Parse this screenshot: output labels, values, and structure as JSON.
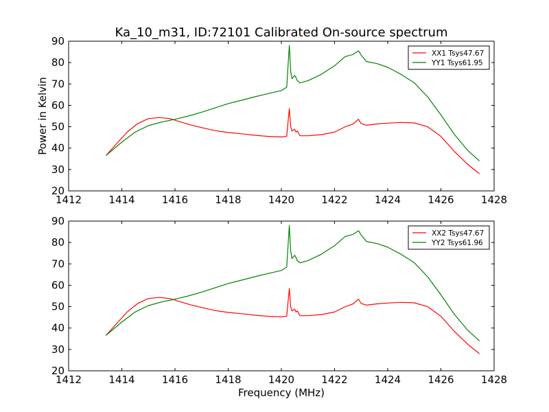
{
  "chart_data": [
    {
      "type": "line",
      "title": "Ka_10_m31, ID:72101 Calibrated On-source spectrum",
      "xlabel": "",
      "ylabel": "Power in Kelvin",
      "xlim": [
        1412,
        1428
      ],
      "ylim": [
        20,
        90
      ],
      "xticks": [
        "1412",
        "1414",
        "1416",
        "1418",
        "1420",
        "1422",
        "1424",
        "1426",
        "1428"
      ],
      "yticks": [
        "20",
        "30",
        "40",
        "50",
        "60",
        "70",
        "80",
        "90"
      ],
      "legend_position": "top-right",
      "grid": false,
      "series": [
        {
          "name": "XX1 Tsys47.67",
          "color": "#ff0000",
          "x": [
            1413.4,
            1413.8,
            1414.2,
            1414.6,
            1415.0,
            1415.4,
            1415.8,
            1416.2,
            1416.6,
            1417.0,
            1417.5,
            1418.0,
            1418.5,
            1419.0,
            1419.5,
            1420.0,
            1420.2,
            1420.3,
            1420.35,
            1420.4,
            1420.5,
            1420.55,
            1420.6,
            1420.7,
            1421.0,
            1421.5,
            1422.0,
            1422.4,
            1422.7,
            1422.9,
            1423.0,
            1423.2,
            1423.6,
            1424.0,
            1424.5,
            1425.0,
            1425.5,
            1426.0,
            1426.5,
            1427.0,
            1427.45
          ],
          "y": [
            36.5,
            42.0,
            47.5,
            51.5,
            53.8,
            54.3,
            53.8,
            52.3,
            50.8,
            49.6,
            48.2,
            47.3,
            46.7,
            46.0,
            45.5,
            45.2,
            45.6,
            58.5,
            50.0,
            48.0,
            48.8,
            47.5,
            48.0,
            45.8,
            45.8,
            46.3,
            47.5,
            50.0,
            51.3,
            53.5,
            51.5,
            50.7,
            51.3,
            51.7,
            52.0,
            51.8,
            50.0,
            45.5,
            38.5,
            32.5,
            28.0
          ]
        },
        {
          "name": "YY1 Tsys61.95",
          "color": "#008000",
          "x": [
            1413.4,
            1414.0,
            1414.5,
            1415.0,
            1415.5,
            1416.0,
            1416.5,
            1417.0,
            1417.5,
            1418.0,
            1418.5,
            1419.0,
            1419.5,
            1420.0,
            1420.2,
            1420.3,
            1420.35,
            1420.4,
            1420.5,
            1420.55,
            1420.6,
            1420.7,
            1421.0,
            1421.5,
            1422.0,
            1422.4,
            1422.7,
            1422.9,
            1423.0,
            1423.2,
            1423.6,
            1424.0,
            1424.5,
            1425.0,
            1425.5,
            1426.0,
            1426.5,
            1427.0,
            1427.45
          ],
          "y": [
            36.5,
            42.8,
            47.5,
            50.5,
            52.2,
            53.5,
            55.0,
            56.8,
            58.8,
            60.8,
            62.4,
            64.0,
            65.5,
            66.9,
            68.5,
            88.0,
            76.0,
            72.5,
            74.0,
            73.0,
            71.5,
            70.5,
            71.5,
            74.5,
            78.5,
            82.8,
            83.8,
            85.5,
            83.5,
            80.5,
            79.5,
            77.8,
            74.5,
            70.5,
            64.0,
            55.5,
            46.5,
            39.0,
            34.0
          ]
        }
      ]
    },
    {
      "type": "line",
      "title": "",
      "xlabel": "Frequency (MHz)",
      "ylabel": "",
      "xlim": [
        1412,
        1428
      ],
      "ylim": [
        20,
        90
      ],
      "xticks": [
        "1412",
        "1414",
        "1416",
        "1418",
        "1420",
        "1422",
        "1424",
        "1426",
        "1428"
      ],
      "yticks": [
        "20",
        "30",
        "40",
        "50",
        "60",
        "70",
        "80",
        "90"
      ],
      "legend_position": "top-right",
      "grid": false,
      "series": [
        {
          "name": "XX2 Tsys47.67",
          "color": "#ff0000",
          "x": [
            1413.4,
            1413.8,
            1414.2,
            1414.6,
            1415.0,
            1415.4,
            1415.8,
            1416.2,
            1416.6,
            1417.0,
            1417.5,
            1418.0,
            1418.5,
            1419.0,
            1419.5,
            1420.0,
            1420.2,
            1420.3,
            1420.35,
            1420.4,
            1420.5,
            1420.55,
            1420.6,
            1420.7,
            1421.0,
            1421.5,
            1422.0,
            1422.4,
            1422.7,
            1422.9,
            1423.0,
            1423.2,
            1423.6,
            1424.0,
            1424.5,
            1425.0,
            1425.5,
            1426.0,
            1426.5,
            1427.0,
            1427.45
          ],
          "y": [
            36.5,
            42.0,
            47.5,
            51.5,
            53.8,
            54.3,
            53.8,
            52.3,
            50.8,
            49.6,
            48.2,
            47.3,
            46.7,
            46.0,
            45.5,
            45.2,
            45.6,
            58.5,
            50.0,
            48.0,
            48.8,
            47.5,
            48.0,
            45.8,
            45.8,
            46.3,
            47.5,
            50.0,
            51.3,
            53.5,
            51.5,
            50.7,
            51.3,
            51.7,
            52.0,
            51.8,
            50.0,
            45.5,
            38.5,
            32.5,
            28.0
          ]
        },
        {
          "name": "YY2 Tsys61.96",
          "color": "#008000",
          "x": [
            1413.4,
            1414.0,
            1414.5,
            1415.0,
            1415.5,
            1416.0,
            1416.5,
            1417.0,
            1417.5,
            1418.0,
            1418.5,
            1419.0,
            1419.5,
            1420.0,
            1420.2,
            1420.3,
            1420.35,
            1420.4,
            1420.5,
            1420.55,
            1420.6,
            1420.7,
            1421.0,
            1421.5,
            1422.0,
            1422.4,
            1422.7,
            1422.9,
            1423.0,
            1423.2,
            1423.6,
            1424.0,
            1424.5,
            1425.0,
            1425.5,
            1426.0,
            1426.5,
            1427.0,
            1427.45
          ],
          "y": [
            36.5,
            42.8,
            47.5,
            50.5,
            52.2,
            53.5,
            55.0,
            56.8,
            58.8,
            60.8,
            62.4,
            64.0,
            65.5,
            66.9,
            68.5,
            88.0,
            76.0,
            72.5,
            74.0,
            73.0,
            71.5,
            70.5,
            71.5,
            74.5,
            78.5,
            82.8,
            83.8,
            85.5,
            83.5,
            80.5,
            79.5,
            77.8,
            74.5,
            70.5,
            64.0,
            55.5,
            46.5,
            39.0,
            34.0
          ]
        }
      ]
    }
  ]
}
